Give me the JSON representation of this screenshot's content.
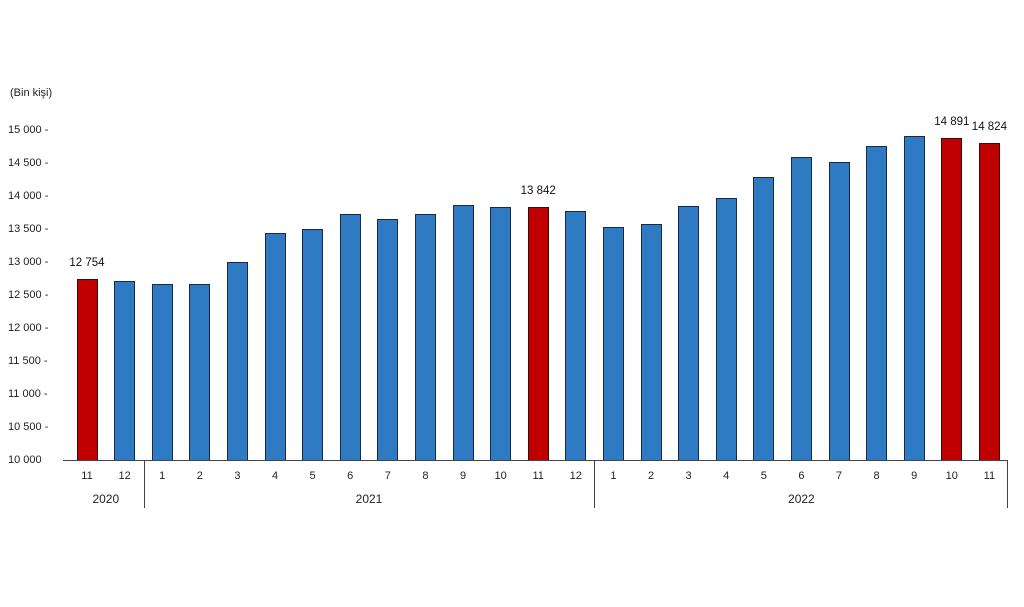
{
  "chart_data": {
    "type": "bar",
    "title": "",
    "unit_label": "(Bin kişi)",
    "xlabel": "",
    "ylabel": "(Bin kişi)",
    "ylim": [
      10000,
      15000
    ],
    "y_ticks": [
      "10 000",
      "10 500",
      "11 000",
      "11 500",
      "12 000",
      "12 500",
      "13 000",
      "13 500",
      "14 000",
      "14 500",
      "15 000"
    ],
    "grid": false,
    "legend": null,
    "colors": {
      "default": "#2e7bc4",
      "highlight": "#c00000"
    },
    "categories": [
      "11",
      "12",
      "1",
      "2",
      "3",
      "4",
      "5",
      "6",
      "7",
      "8",
      "9",
      "10",
      "11",
      "12",
      "1",
      "2",
      "3",
      "4",
      "5",
      "6",
      "7",
      "8",
      "9",
      "10",
      "11"
    ],
    "years": [
      {
        "label": "2020",
        "start": 0,
        "end": 1
      },
      {
        "label": "2021",
        "start": 2,
        "end": 13
      },
      {
        "label": "2022",
        "start": 14,
        "end": 24
      }
    ],
    "values": [
      12754,
      12727,
      12682,
      12682,
      13015,
      13455,
      13515,
      13738,
      13667,
      13738,
      13879,
      13853,
      13842,
      13788,
      13550,
      13596,
      13864,
      13980,
      14298,
      14610,
      14535,
      14777,
      14924,
      14891,
      14824
    ],
    "highlighted": [
      0,
      12,
      23,
      24
    ],
    "data_labels": [
      {
        "index": 0,
        "text": "12 754"
      },
      {
        "index": 12,
        "text": "13 842"
      },
      {
        "index": 23,
        "text": "14 891"
      },
      {
        "index": 24,
        "text": "14 824"
      }
    ]
  }
}
